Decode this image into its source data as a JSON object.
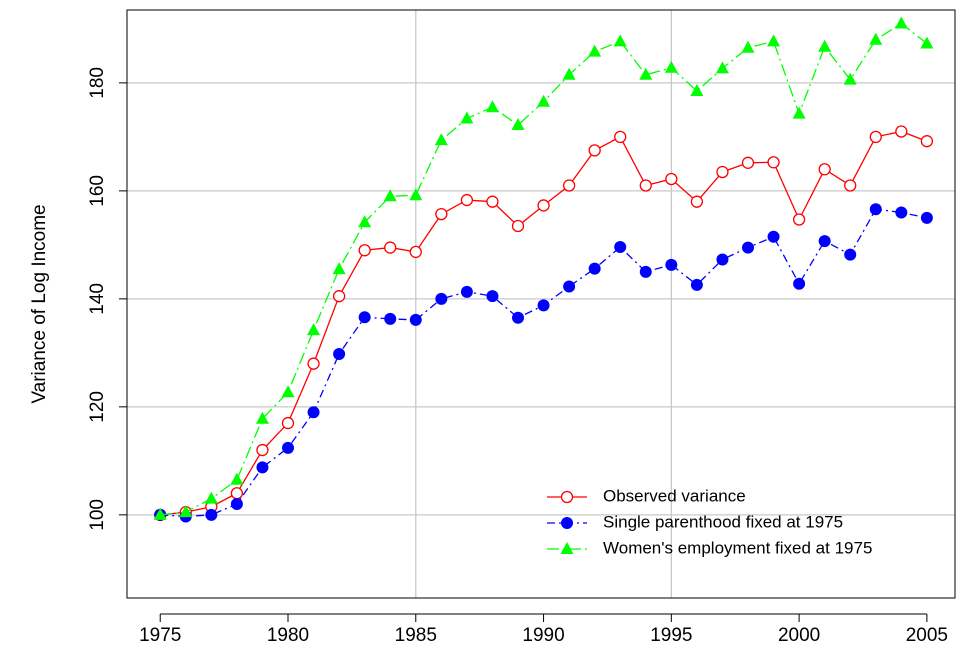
{
  "chart_data": {
    "type": "line",
    "y_label": "Variance of Log Income",
    "x": [
      1975,
      1976,
      1977,
      1978,
      1979,
      1980,
      1981,
      1982,
      1983,
      1984,
      1985,
      1986,
      1987,
      1988,
      1989,
      1990,
      1991,
      1992,
      1993,
      1994,
      1995,
      1996,
      1997,
      1998,
      1999,
      2000,
      2001,
      2002,
      2003,
      2004,
      2005
    ],
    "series": [
      {
        "name": "Observed variance",
        "color": "#ff0000",
        "marker": "open-circle",
        "linestyle": "solid",
        "values": [
          100,
          100.5,
          101.5,
          104,
          112,
          117,
          128,
          140.5,
          149,
          149.5,
          148.7,
          155.7,
          158.3,
          158,
          153.5,
          157.3,
          161,
          167.5,
          170,
          161,
          162.2,
          158,
          163.5,
          165.2,
          165.3,
          154.7,
          164,
          161,
          170,
          171,
          169.2
        ]
      },
      {
        "name": "Single parenthood fixed at 1975",
        "color": "#0000ff",
        "marker": "filled-circle",
        "linestyle": "dashdot",
        "values": [
          100,
          99.7,
          100,
          102,
          108.8,
          112.4,
          119,
          129.8,
          136.6,
          136.3,
          136.1,
          140,
          141.3,
          140.5,
          136.5,
          138.8,
          142.3,
          145.6,
          149.6,
          145,
          146.3,
          142.6,
          147.3,
          149.5,
          151.5,
          142.8,
          150.7,
          148.2,
          156.6,
          156,
          155
        ]
      },
      {
        "name": "Women's employment fixed at 1975",
        "color": "#00ff00",
        "marker": "triangle",
        "linestyle": "longdash",
        "values": [
          100,
          100.5,
          103,
          106.5,
          117.8,
          122.7,
          134.2,
          145.5,
          154.2,
          159,
          159.2,
          169.4,
          173.4,
          175.5,
          172.2,
          176.5,
          181.5,
          185.8,
          187.7,
          181.5,
          182.8,
          178.5,
          182.7,
          186.5,
          187.7,
          174.3,
          186.7,
          180.6,
          188,
          191,
          187.3
        ]
      }
    ],
    "xlim": [
      1973.7,
      2006.1
    ],
    "ylim": [
      84.6,
      193.5
    ],
    "xticks": [
      1975,
      1980,
      1985,
      1990,
      1995,
      2000,
      2005
    ],
    "yticks": [
      100,
      120,
      140,
      160,
      180
    ],
    "x_grid": [
      1985,
      1995
    ],
    "y_grid": true,
    "legend": "bottom-right"
  }
}
